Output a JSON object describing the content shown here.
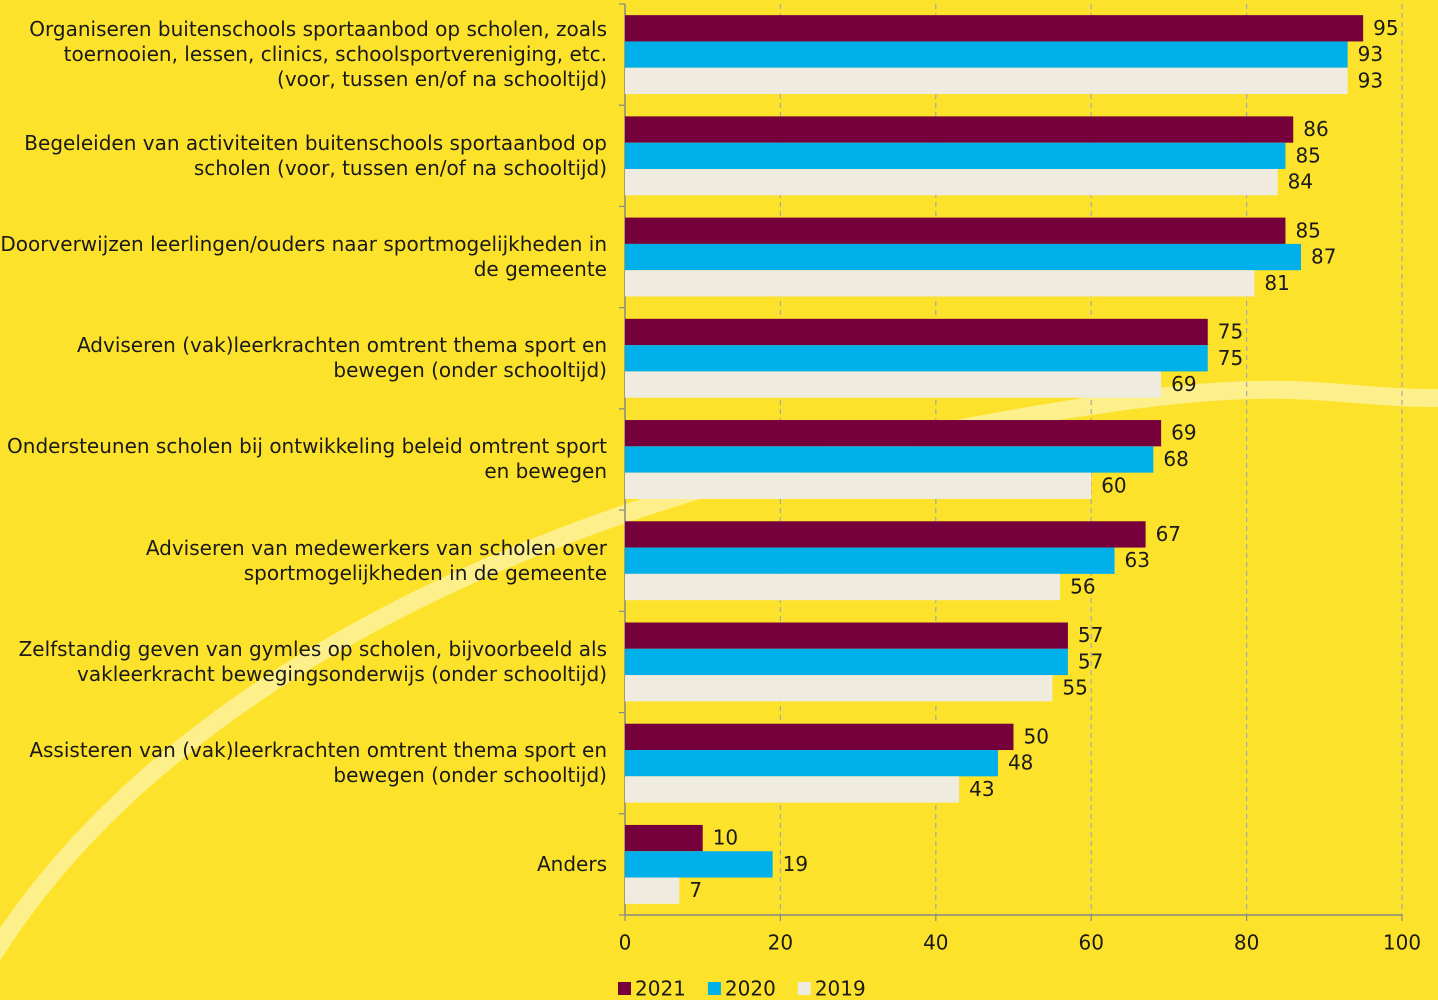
{
  "chart_data": {
    "type": "hbar",
    "categories": [
      "Organiseren buitenschools sportaanbod op scholen, zoals toernooien, lessen, clinics, schoolsportvereniging, etc. (voor, tussen en/of na schooltijd)",
      "Begeleiden van activiteiten buitenschools sportaanbod op scholen (voor, tussen en/of na schooltijd)",
      "Doorverwijzen leerlingen/ouders naar sportmogelijkheden in de gemeente",
      "Adviseren (vak)leerkrachten omtrent thema sport en bewegen (onder schooltijd)",
      "Ondersteunen scholen bij ontwikkeling beleid omtrent sport en bewegen",
      "Adviseren van medewerkers van scholen over sportmogelijkheden in de gemeente",
      "Zelfstandig geven van gymles op scholen, bijvoorbeeld als vakleerkracht bewegingsonderwijs (onder schooltijd)",
      "Assisteren van (vak)leerkrachten omtrent thema sport en bewegen (onder schooltijd)",
      "Anders"
    ],
    "series": [
      {
        "name": "2021",
        "color": "#76003c",
        "values": [
          95,
          86,
          85,
          75,
          69,
          67,
          57,
          50,
          10
        ]
      },
      {
        "name": "2020",
        "color": "#00b0ea",
        "values": [
          93,
          85,
          87,
          75,
          68,
          63,
          57,
          48,
          19
        ]
      },
      {
        "name": "2019",
        "color": "#efebdf",
        "values": [
          93,
          84,
          81,
          69,
          60,
          56,
          55,
          43,
          7
        ]
      }
    ],
    "xlim": [
      0,
      100
    ],
    "xticks": [
      0,
      20,
      40,
      60,
      80,
      100
    ],
    "grid": true,
    "legend": "bottom"
  }
}
